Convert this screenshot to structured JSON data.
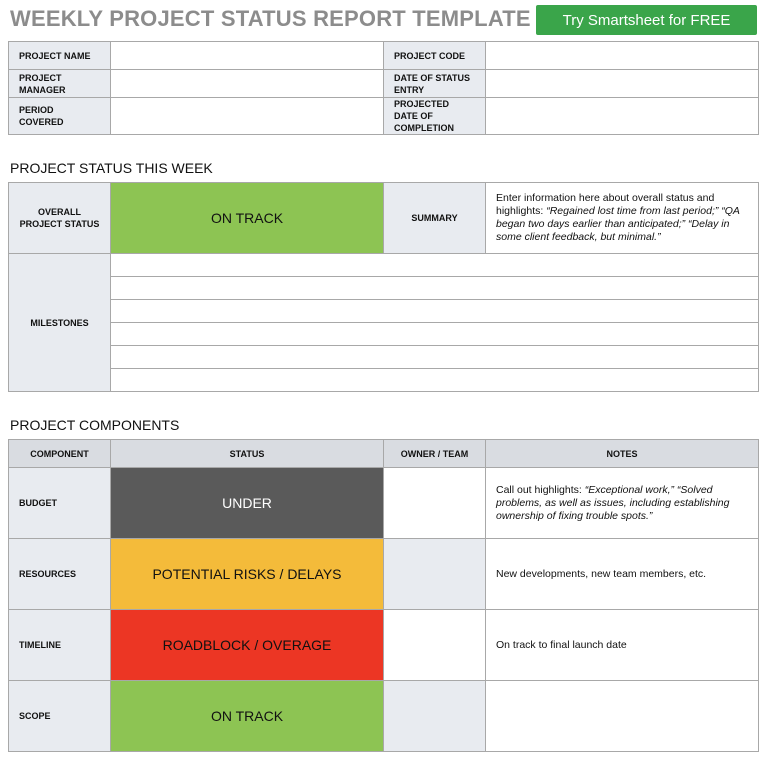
{
  "title": "WEEKLY PROJECT STATUS REPORT TEMPLATE",
  "cta_label": "Try Smartsheet for FREE",
  "info": {
    "project_name": "PROJECT NAME",
    "project_code": "PROJECT CODE",
    "project_manager": "PROJECT MANAGER",
    "date_of_status_entry": "DATE OF STATUS ENTRY",
    "period_covered": "PERIOD COVERED",
    "projected_completion": "PROJECTED DATE OF COMPLETION"
  },
  "status_section": {
    "heading": "PROJECT STATUS THIS WEEK",
    "overall_label": "OVERALL PROJECT STATUS",
    "overall_value": "ON TRACK",
    "overall_color": "#8dc453",
    "summary_label": "SUMMARY",
    "summary_intro": "Enter information here about overall status and highlights: ",
    "summary_italic": "“Regained lost time from last period;” “QA began two days earlier than anticipated;” “Delay in some client feedback, but minimal.”",
    "milestones_label": "MILESTONES"
  },
  "components_section": {
    "heading": "PROJECT COMPONENTS",
    "headers": [
      "COMPONENT",
      "STATUS",
      "OWNER / TEAM",
      "NOTES"
    ],
    "rows": [
      {
        "component": "BUDGET",
        "status": "UNDER",
        "status_color": "#5a5a5a",
        "status_text_color": "#ffffff",
        "notes_plain": "Call out highlights: ",
        "notes_italic": "“Exceptional work,” “Solved problems, as well as issues, including establishing ownership of fixing trouble spots.”"
      },
      {
        "component": "RESOURCES",
        "status": "POTENTIAL RISKS / DELAYS",
        "status_color": "#f4bb3a",
        "status_text_color": "#111111",
        "notes_plain": "New developments, new team members, etc.",
        "notes_italic": ""
      },
      {
        "component": "TIMELINE",
        "status": "ROADBLOCK / OVERAGE",
        "status_color": "#ec3624",
        "status_text_color": "#111111",
        "notes_plain": "On track to final launch date",
        "notes_italic": ""
      },
      {
        "component": "SCOPE",
        "status": "ON TRACK",
        "status_color": "#8dc453",
        "status_text_color": "#111111",
        "notes_plain": "",
        "notes_italic": ""
      }
    ]
  }
}
